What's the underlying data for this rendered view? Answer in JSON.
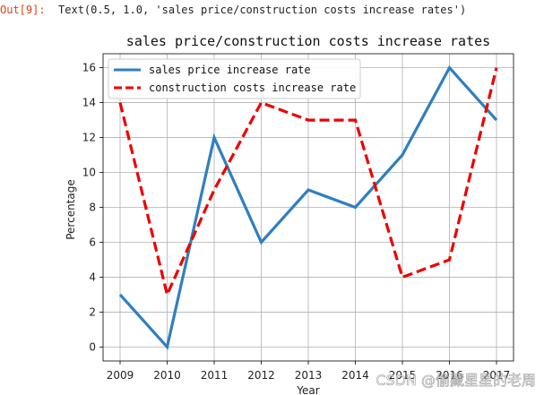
{
  "notebook": {
    "prompt": "Out[9]:",
    "output_text": "Text(0.5, 1.0, 'sales price/construction costs increase rates')"
  },
  "watermark": "CSDN @偷藏星星的老周",
  "chart_data": {
    "type": "line",
    "title": "sales price/construction costs increase rates",
    "xlabel": "Year",
    "ylabel": "Percentage",
    "categories": [
      "2009",
      "2010",
      "2011",
      "2012",
      "2013",
      "2014",
      "2015",
      "2016",
      "2017"
    ],
    "series": [
      {
        "name": "sales price increase rate",
        "values": [
          3,
          0,
          12,
          6,
          9,
          8,
          11,
          16,
          13
        ],
        "color": "#2f7fbf",
        "style": "solid"
      },
      {
        "name": "construction costs increase rate",
        "values": [
          14,
          3,
          9,
          14,
          13,
          13,
          4,
          5,
          16
        ],
        "color": "#ee0000",
        "style": "dashed"
      }
    ],
    "yticks": [
      0,
      2,
      4,
      6,
      8,
      10,
      12,
      14,
      16
    ],
    "ylim": [
      -0.8,
      16.8
    ],
    "grid": true,
    "legend_position": "upper-left"
  }
}
